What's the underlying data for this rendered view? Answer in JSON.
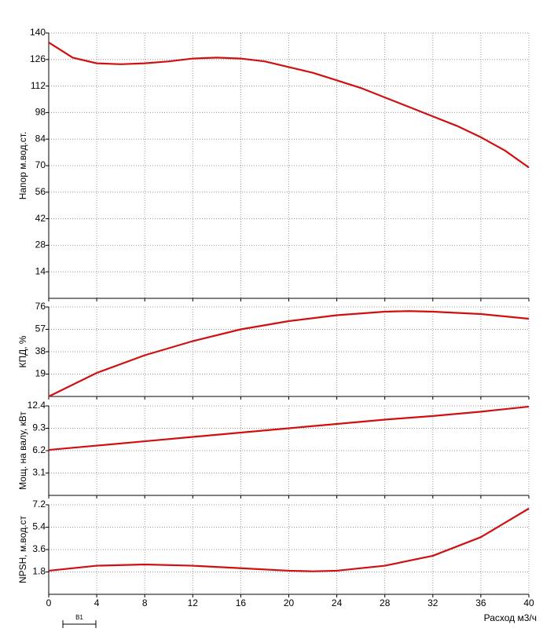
{
  "chart_data": [
    {
      "type": "line",
      "ylabel": "Напор м.вод.ст.",
      "color": "#d01010",
      "x": [
        0,
        2,
        4,
        6,
        8,
        10,
        12,
        14,
        16,
        18,
        20,
        22,
        24,
        26,
        28,
        30,
        32,
        34,
        36,
        38,
        40
      ],
      "values": [
        135,
        127,
        124,
        123.5,
        124,
        125,
        126.5,
        127,
        126.5,
        125,
        122,
        119,
        115,
        111,
        106,
        101,
        96,
        91,
        85,
        78,
        69
      ],
      "xlim": [
        0,
        40
      ],
      "xticks": [
        0,
        4,
        8,
        12,
        16,
        20,
        24,
        28,
        32,
        36,
        40
      ],
      "xtick_labels": false,
      "ylim": [
        0,
        140
      ],
      "yticks": [
        14,
        28,
        42,
        56,
        70,
        84,
        98,
        112,
        126,
        140
      ],
      "grid": true
    },
    {
      "type": "line",
      "ylabel": "КПД, %",
      "color": "#d01010",
      "x": [
        0,
        4,
        8,
        12,
        16,
        20,
        24,
        28,
        30,
        32,
        36,
        40
      ],
      "values": [
        0,
        20,
        35,
        47,
        57,
        64,
        69,
        72,
        72.5,
        72,
        70,
        66
      ],
      "xlim": [
        0,
        40
      ],
      "xticks": [
        0,
        4,
        8,
        12,
        16,
        20,
        24,
        28,
        32,
        36,
        40
      ],
      "xtick_labels": false,
      "ylim": [
        0,
        76
      ],
      "yticks": [
        19,
        38,
        57,
        76
      ],
      "grid": true
    },
    {
      "type": "line",
      "ylabel": "Мощ. на валу, кВт",
      "color": "#d01010",
      "x": [
        0,
        4,
        8,
        12,
        16,
        20,
        24,
        28,
        32,
        36,
        40
      ],
      "values": [
        6.3,
        6.9,
        7.5,
        8.1,
        8.7,
        9.3,
        9.9,
        10.5,
        11.0,
        11.6,
        12.3
      ],
      "xlim": [
        0,
        40
      ],
      "xticks": [
        0,
        4,
        8,
        12,
        16,
        20,
        24,
        28,
        32,
        36,
        40
      ],
      "xtick_labels": false,
      "ylim": [
        0,
        12.4
      ],
      "yticks": [
        3.1,
        6.2,
        9.3,
        12.4
      ],
      "grid": true
    },
    {
      "type": "line",
      "ylabel": "NPSH, м.вод.ст",
      "xlabel": "Расход м3/ч",
      "color": "#d01010",
      "x": [
        0,
        4,
        8,
        12,
        16,
        20,
        22,
        24,
        28,
        32,
        36,
        40
      ],
      "values": [
        1.9,
        2.3,
        2.4,
        2.3,
        2.1,
        1.9,
        1.85,
        1.9,
        2.3,
        3.1,
        4.6,
        6.9
      ],
      "xlim": [
        0,
        40
      ],
      "xticks": [
        0,
        4,
        8,
        12,
        16,
        20,
        24,
        28,
        32,
        36,
        40
      ],
      "xtick_labels": true,
      "ylim": [
        0,
        7.2
      ],
      "yticks": [
        1.8,
        3.6,
        5.4,
        7.2
      ],
      "grid": true
    }
  ],
  "marker": {
    "label": "B1"
  }
}
